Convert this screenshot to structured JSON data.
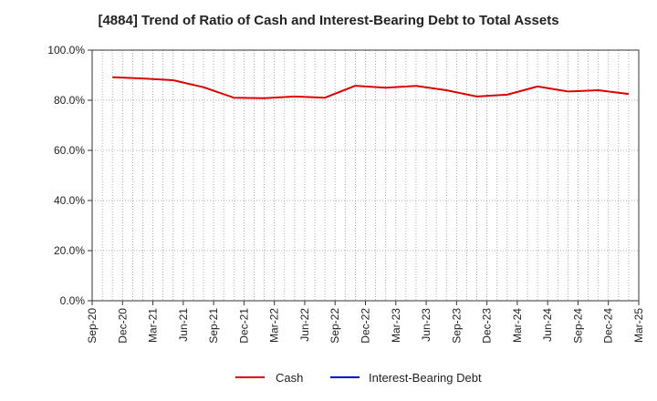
{
  "chart_data": {
    "type": "line",
    "title": "[4884]  Trend of Ratio of Cash and Interest-Bearing Debt to Total Assets",
    "x_tick_labels": [
      "Sep-20",
      "Dec-20",
      "Mar-21",
      "Jun-21",
      "Sep-21",
      "Dec-21",
      "Mar-22",
      "Jun-22",
      "Sep-22",
      "Dec-22",
      "Mar-23",
      "Jun-23",
      "Sep-23",
      "Dec-23",
      "Mar-24",
      "Jun-24",
      "Sep-24",
      "Dec-24",
      "Mar-25"
    ],
    "y_tick_labels": [
      "0.0%",
      "20.0%",
      "40.0%",
      "60.0%",
      "80.0%",
      "100.0%"
    ],
    "ylim": [
      0,
      100
    ],
    "grid": true,
    "legend_position": "bottom",
    "series": [
      {
        "name": "Cash",
        "color": "#dd0000",
        "x": [
          "Nov-20",
          "Feb-21",
          "May-21",
          "Aug-21",
          "Nov-21",
          "Feb-22",
          "May-22",
          "Aug-22",
          "Nov-22",
          "Feb-23",
          "May-23",
          "Aug-23",
          "Nov-23",
          "Feb-24",
          "May-24",
          "Aug-24",
          "Nov-24",
          "Feb-25"
        ],
        "values": [
          89.2,
          88.7,
          88.0,
          85.2,
          81.0,
          80.8,
          81.5,
          81.0,
          85.8,
          85.0,
          85.7,
          84.0,
          81.5,
          82.2,
          85.5,
          83.5,
          84.0,
          82.5
        ]
      },
      {
        "name": "Interest-Bearing Debt",
        "color": "#0000cc",
        "x": [],
        "values": []
      }
    ]
  }
}
